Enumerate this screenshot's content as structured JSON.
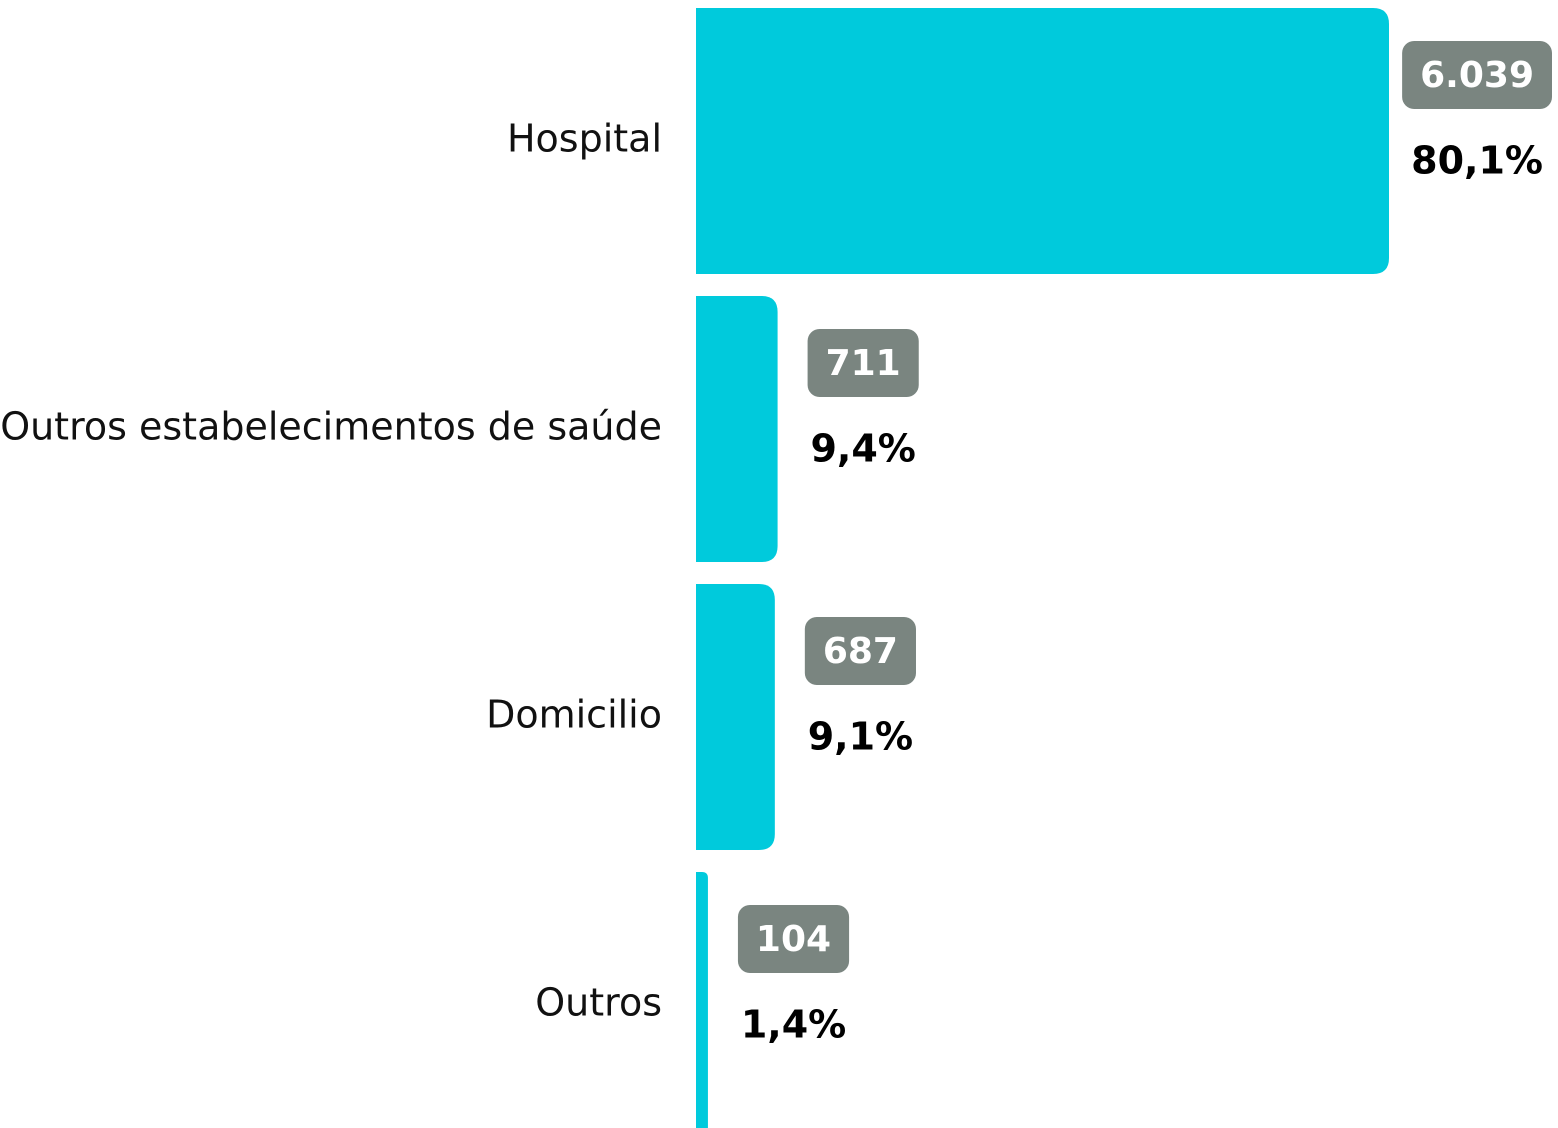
{
  "chart_data": {
    "type": "hbar",
    "categories": [
      "Hospital",
      "Outros estabelecimentos de saúde",
      "Domicilio",
      "Outros"
    ],
    "values": [
      6039,
      711,
      687,
      104
    ],
    "value_labels": [
      "6.039",
      "711",
      "687",
      "104"
    ],
    "percentages": [
      80.1,
      9.4,
      9.1,
      1.4
    ],
    "percentage_labels": [
      "80,1%",
      "9,4%",
      "9,1%",
      "1,4%"
    ],
    "xlim": [
      0,
      6039
    ],
    "color": "#00cadc",
    "label_color": "#7a8580"
  }
}
